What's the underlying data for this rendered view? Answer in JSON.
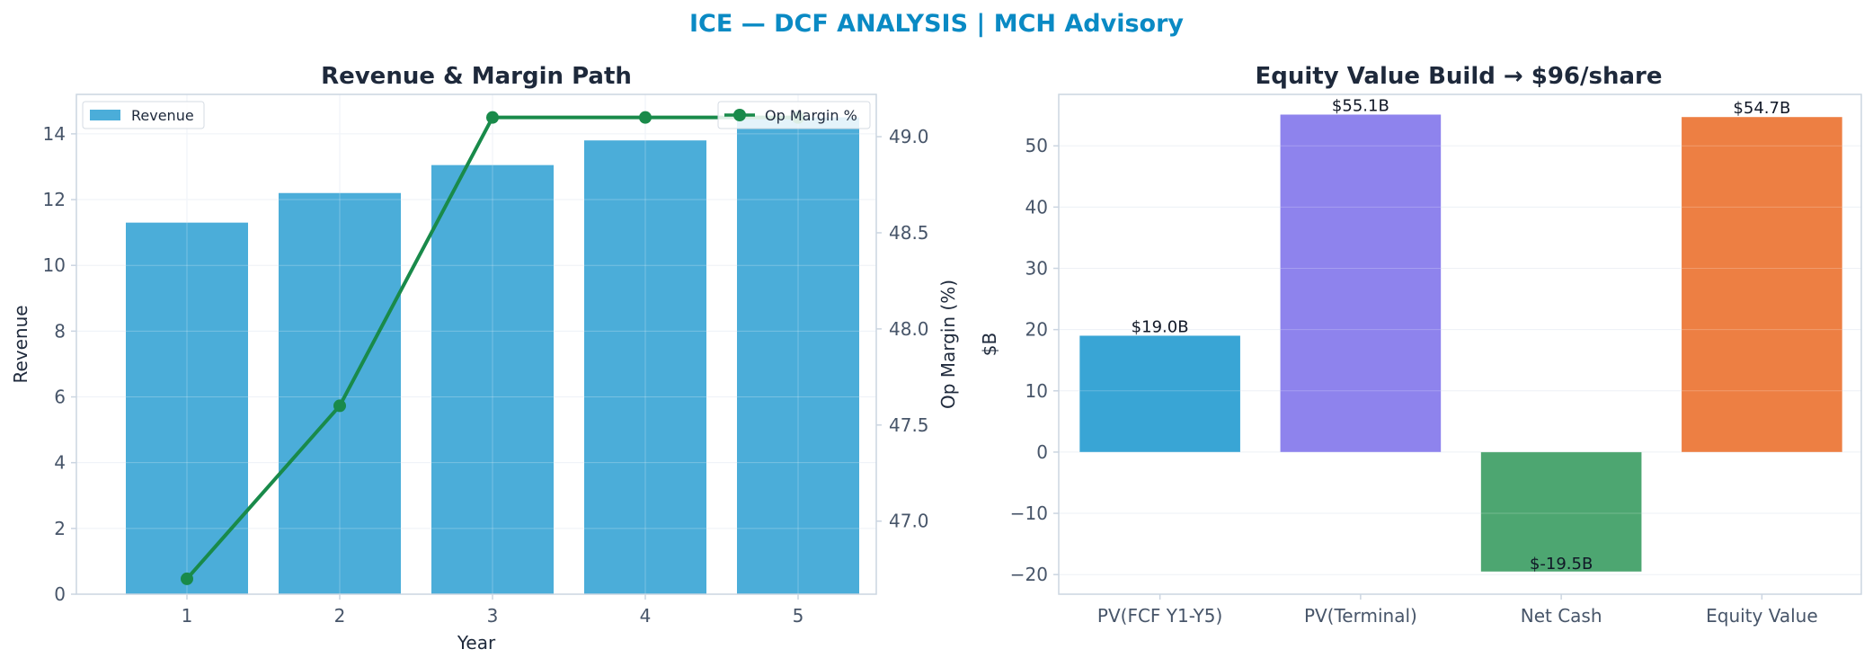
{
  "suptitle": "ICE — DCF ANALYSIS | MCH Advisory",
  "colors": {
    "suptitle": "#0a8ac4",
    "revenue_bar": "#4badd9",
    "margin_line": "#198a4a",
    "axis": "#cbd5e1",
    "grid": "#e9eef4",
    "tick_text": "#475569",
    "title_text": "#1e293b"
  },
  "chart_data": [
    {
      "type": "bar",
      "title": "Revenue & Margin Path",
      "xlabel": "Year",
      "ylabel": "Revenue",
      "y2label": "Op Margin (%)",
      "categories": [
        "1",
        "2",
        "3",
        "4",
        "5"
      ],
      "ylim": [
        0,
        15.2
      ],
      "yticks": [
        0,
        2,
        4,
        6,
        8,
        10,
        12,
        14
      ],
      "y2lim": [
        46.62,
        49.22
      ],
      "y2ticks": [
        "47.0",
        "47.5",
        "48.0",
        "48.5",
        "49.0"
      ],
      "grid": true,
      "series": [
        {
          "name": "Revenue",
          "type": "bar",
          "axis": "left",
          "color": "#4badd9",
          "values": [
            11.3,
            12.2,
            13.05,
            13.8,
            14.5
          ]
        },
        {
          "name": "Op Margin %",
          "type": "line",
          "axis": "right",
          "color": "#198a4a",
          "values": [
            46.7,
            47.6,
            49.1,
            49.1,
            49.1
          ]
        }
      ],
      "legend": [
        {
          "label": "Revenue",
          "placement": "top-left",
          "marker": "bar"
        },
        {
          "label": "Op Margin %",
          "placement": "top-right",
          "marker": "line"
        }
      ]
    },
    {
      "type": "bar",
      "title": "Equity Value Build → $96/share",
      "xlabel": "",
      "ylabel": "$B",
      "categories": [
        "PV(FCF Y1-Y5)",
        "PV(Terminal)",
        "Net Cash",
        "Equity Value"
      ],
      "values": [
        19.0,
        55.1,
        -19.5,
        54.7
      ],
      "data_labels": [
        "$19.0B",
        "$55.1B",
        "$-19.5B",
        "$54.7B"
      ],
      "colors": [
        "#33a2d4",
        "#8a7fec",
        "#47a36c",
        "#ec7b3d"
      ],
      "ylim": [
        -23.2,
        58.4
      ],
      "yticks": [
        "−20",
        "−10",
        "0",
        "10",
        "20",
        "30",
        "40",
        "50"
      ],
      "ytick_values": [
        -20,
        -10,
        0,
        10,
        20,
        30,
        40,
        50
      ],
      "grid": true
    }
  ]
}
